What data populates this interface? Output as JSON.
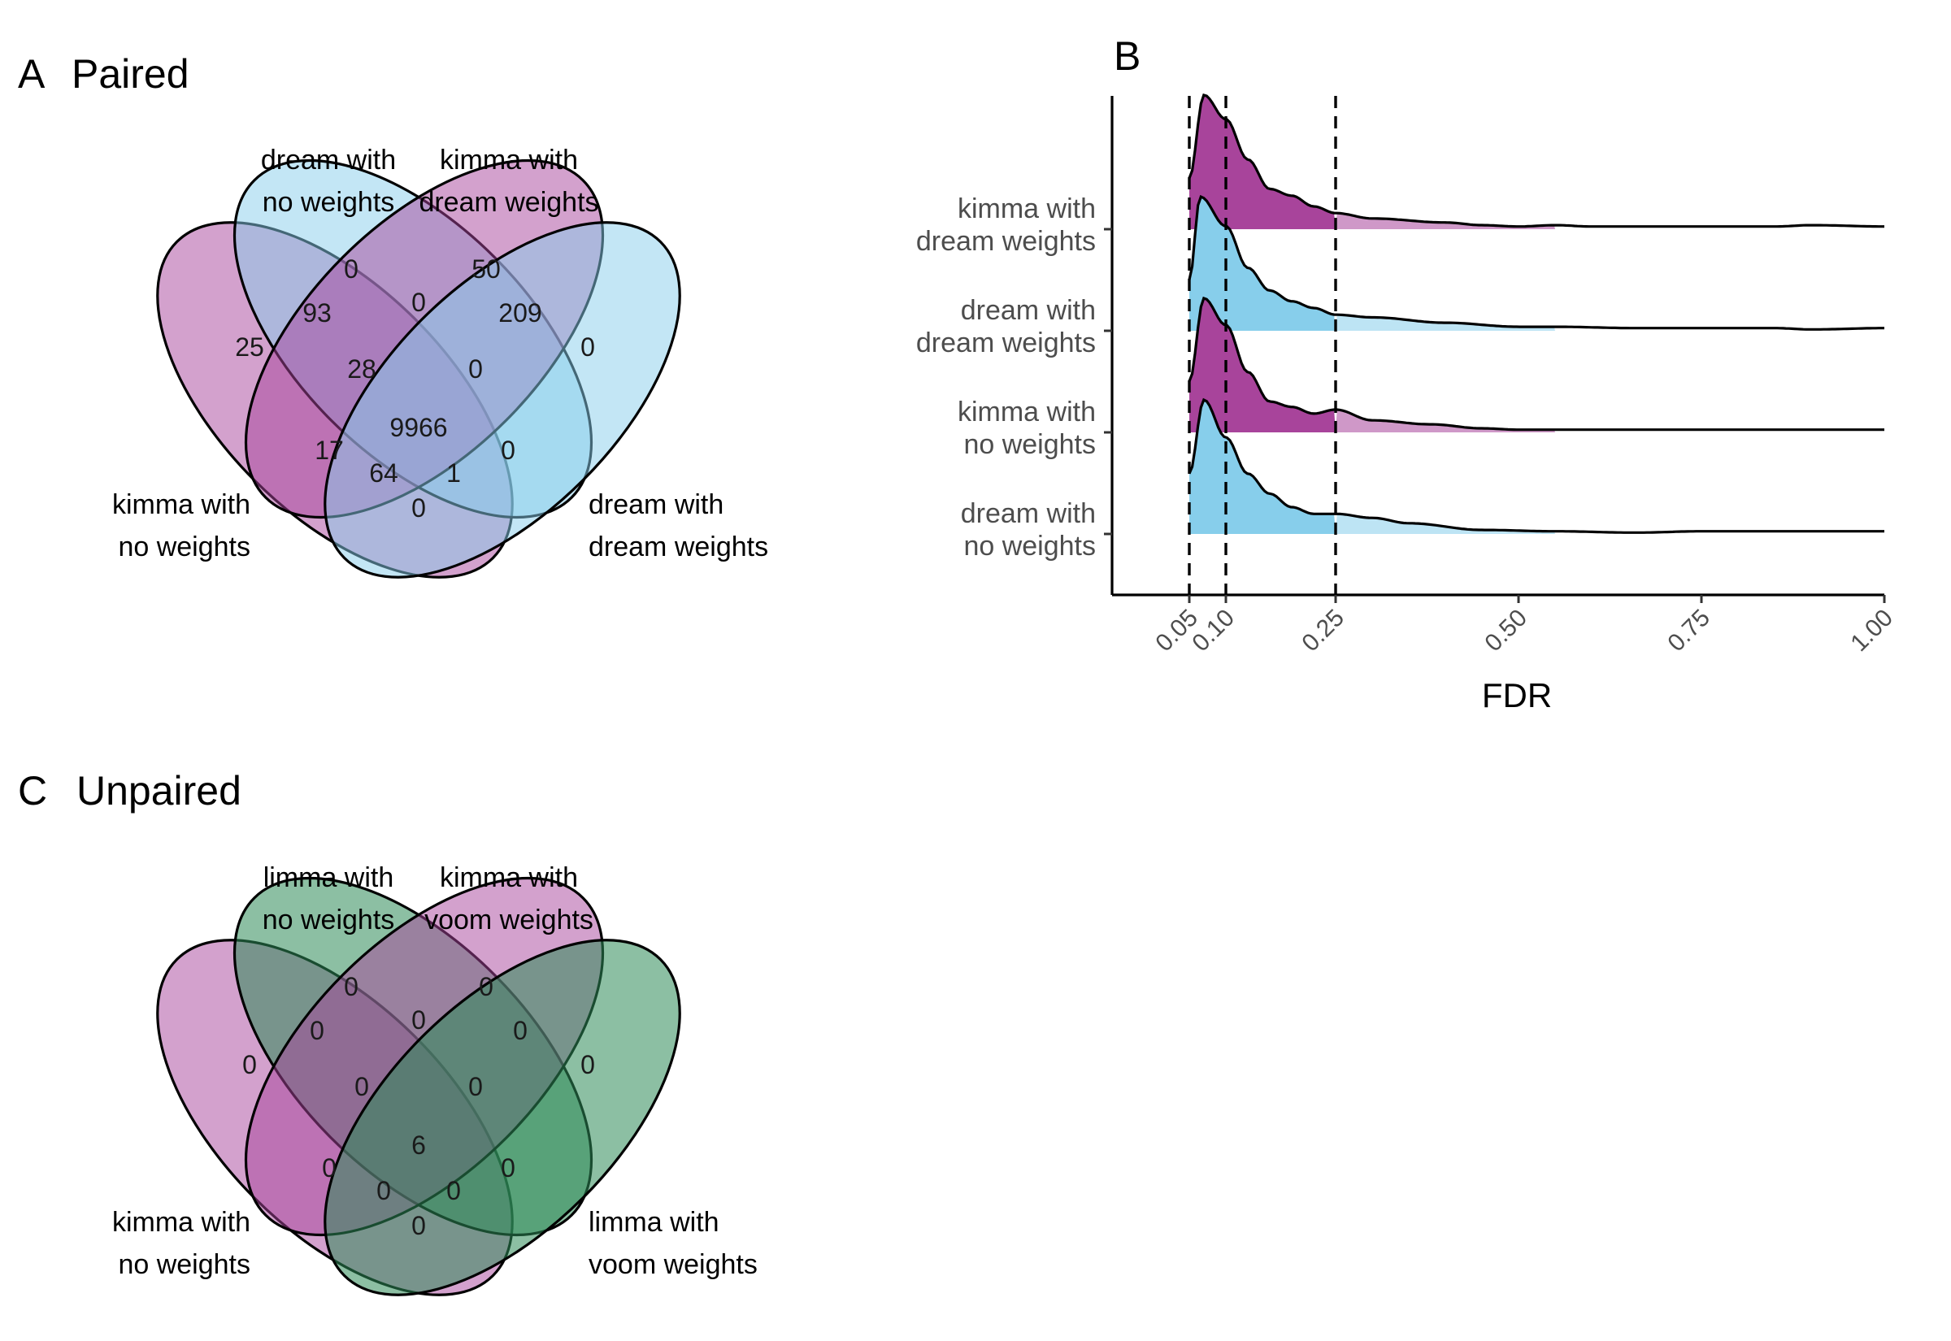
{
  "colors": {
    "kimma": "#a8449b",
    "dream": "#87ceeb",
    "limma": "#2e8b57",
    "venn_kimma": "#a8449b",
    "venn_dream": "#87ceeb",
    "venn_limma": "#2e8b57"
  },
  "chart_data": [
    {
      "type": "venn",
      "panel_letter": "A",
      "title": "Paired",
      "sets": [
        {
          "name": "kimma with\nno weights",
          "line1": "kimma with",
          "line2": "no weights",
          "color": "#a8449b"
        },
        {
          "name": "dream with\nno weights",
          "line1": "dream with",
          "line2": "no weights",
          "color": "#87ceeb"
        },
        {
          "name": "kimma with\ndream weights",
          "line1": "kimma with",
          "line2": "dream weights",
          "color": "#a8449b"
        },
        {
          "name": "dream with\ndream weights",
          "line1": "dream with",
          "line2": "dream weights",
          "color": "#87ceeb"
        }
      ],
      "regions": {
        "1": "25",
        "2": "0",
        "3": "50",
        "4": "0",
        "12": "93",
        "23": "0",
        "34": "209",
        "13": "17",
        "24": "0",
        "14": "0",
        "123": "28",
        "234": "0",
        "134": "1",
        "124": "64",
        "1234": "9966"
      }
    },
    {
      "type": "ridgeline",
      "panel_letter": "B",
      "xlabel": "FDR",
      "xlim": [
        0,
        1
      ],
      "x_ticks": [
        "0.05",
        "0.10",
        "0.25",
        "0.50",
        "0.75",
        "1.00"
      ],
      "x_tick_values": [
        0.05,
        0.1,
        0.25,
        0.5,
        0.75,
        1.0
      ],
      "reference_lines": [
        0.05,
        0.1,
        0.25
      ],
      "fill_range": [
        0.0,
        0.25
      ],
      "series": [
        {
          "line1": "kimma with",
          "line2": "dream weights",
          "color": "#a8449b",
          "density": [
            [
              0.05,
              0.38
            ],
            [
              0.07,
              1.0
            ],
            [
              0.1,
              0.82
            ],
            [
              0.13,
              0.52
            ],
            [
              0.16,
              0.3
            ],
            [
              0.19,
              0.25
            ],
            [
              0.22,
              0.17
            ],
            [
              0.25,
              0.12
            ],
            [
              0.3,
              0.08
            ],
            [
              0.4,
              0.05
            ],
            [
              0.45,
              0.03
            ],
            [
              0.5,
              0.02
            ],
            [
              0.55,
              0.03
            ],
            [
              0.6,
              0.02
            ],
            [
              0.66,
              0.02
            ],
            [
              0.75,
              0.02
            ],
            [
              0.85,
              0.02
            ],
            [
              0.9,
              0.03
            ],
            [
              1.0,
              0.02
            ]
          ]
        },
        {
          "line1": "dream with",
          "line2": "dream weights",
          "color": "#87ceeb",
          "density": [
            [
              0.05,
              0.38
            ],
            [
              0.065,
              1.0
            ],
            [
              0.1,
              0.78
            ],
            [
              0.13,
              0.47
            ],
            [
              0.16,
              0.3
            ],
            [
              0.19,
              0.22
            ],
            [
              0.22,
              0.17
            ],
            [
              0.25,
              0.12
            ],
            [
              0.3,
              0.1
            ],
            [
              0.4,
              0.06
            ],
            [
              0.5,
              0.03
            ],
            [
              0.55,
              0.03
            ],
            [
              0.66,
              0.02
            ],
            [
              0.75,
              0.02
            ],
            [
              0.85,
              0.02
            ],
            [
              0.9,
              0.01
            ],
            [
              1.0,
              0.02
            ]
          ]
        },
        {
          "line1": "kimma with",
          "line2": "no weights",
          "color": "#a8449b",
          "density": [
            [
              0.05,
              0.38
            ],
            [
              0.07,
              1.0
            ],
            [
              0.1,
              0.8
            ],
            [
              0.13,
              0.45
            ],
            [
              0.16,
              0.23
            ],
            [
              0.19,
              0.19
            ],
            [
              0.22,
              0.14
            ],
            [
              0.25,
              0.17
            ],
            [
              0.3,
              0.09
            ],
            [
              0.38,
              0.06
            ],
            [
              0.45,
              0.03
            ],
            [
              0.5,
              0.02
            ],
            [
              0.6,
              0.02
            ],
            [
              0.75,
              0.02
            ],
            [
              0.9,
              0.02
            ],
            [
              1.0,
              0.02
            ]
          ]
        },
        {
          "line1": "dream with",
          "line2": "no weights",
          "color": "#87ceeb",
          "density": [
            [
              0.05,
              0.45
            ],
            [
              0.07,
              1.0
            ],
            [
              0.1,
              0.72
            ],
            [
              0.13,
              0.45
            ],
            [
              0.16,
              0.3
            ],
            [
              0.19,
              0.2
            ],
            [
              0.22,
              0.15
            ],
            [
              0.25,
              0.15
            ],
            [
              0.3,
              0.12
            ],
            [
              0.35,
              0.08
            ],
            [
              0.45,
              0.03
            ],
            [
              0.55,
              0.02
            ],
            [
              0.66,
              0.01
            ],
            [
              0.75,
              0.02
            ],
            [
              0.9,
              0.02
            ],
            [
              1.0,
              0.02
            ]
          ]
        }
      ]
    },
    {
      "type": "venn",
      "panel_letter": "C",
      "title": "Unpaired",
      "sets": [
        {
          "name": "kimma with\nno weights",
          "line1": "kimma with",
          "line2": "no weights",
          "color": "#a8449b"
        },
        {
          "name": "limma with\nno weights",
          "line1": "limma with",
          "line2": "no weights",
          "color": "#2e8b57"
        },
        {
          "name": "kimma with\nvoom weights",
          "line1": "kimma with",
          "line2": "voom weights",
          "color": "#a8449b"
        },
        {
          "name": "limma with\nvoom weights",
          "line1": "limma with",
          "line2": "voom weights",
          "color": "#2e8b57"
        }
      ],
      "regions": {
        "1": "0",
        "2": "0",
        "3": "0",
        "4": "0",
        "12": "0",
        "23": "0",
        "34": "0",
        "13": "0",
        "24": "0",
        "14": "0",
        "123": "0",
        "234": "0",
        "134": "0",
        "124": "0",
        "1234": "6"
      }
    }
  ]
}
